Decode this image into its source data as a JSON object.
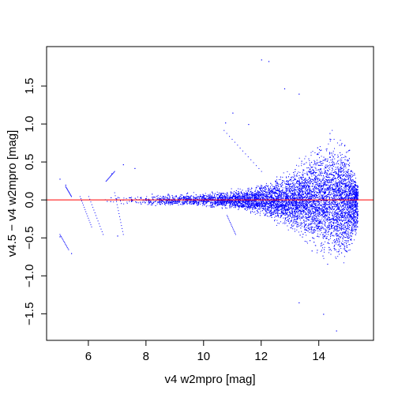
{
  "chart_data": {
    "type": "scatter",
    "title": "",
    "xlabel": "v4 w2mpro [mag]",
    "ylabel": "v4.5 − v4 w2mpro [mag]",
    "xlim": [
      4.55,
      15.9
    ],
    "ylim": [
      -1.85,
      2.02
    ],
    "xticks": [
      6,
      8,
      10,
      12,
      14
    ],
    "xtick_labels": [
      "6",
      "8",
      "10",
      "12",
      "14"
    ],
    "yticks": [
      -1.5,
      -1.0,
      -0.5,
      0.0,
      0.5,
      1.0,
      1.5
    ],
    "ytick_labels": [
      "−1.5",
      "−1.0",
      "−0.5",
      "0.0",
      "0.5",
      "1.0",
      "1.5"
    ],
    "grid": false,
    "point_color": "#0000ff",
    "reference_line": {
      "y": 0.0,
      "color": "#ff0000"
    },
    "density_envelope": {
      "description_x": [
        5.0,
        6.5,
        8.0,
        10.0,
        11.0,
        12.0,
        13.0,
        13.5,
        14.0,
        14.5,
        15.0,
        15.3
      ],
      "upper": [
        0.06,
        0.07,
        0.09,
        0.12,
        0.16,
        0.25,
        0.45,
        0.65,
        0.9,
        1.05,
        0.85,
        0.3
      ],
      "lower": [
        -0.05,
        -0.06,
        -0.08,
        -0.11,
        -0.15,
        -0.25,
        -0.45,
        -0.62,
        -0.82,
        -0.95,
        -0.95,
        -0.6
      ]
    },
    "outliers": [
      {
        "x": 12.0,
        "y": 1.85
      },
      {
        "x": 12.25,
        "y": 1.83
      },
      {
        "x": 11.0,
        "y": 1.15
      },
      {
        "x": 11.55,
        "y": 1.0
      },
      {
        "x": 12.8,
        "y": 1.47
      },
      {
        "x": 13.3,
        "y": 1.4
      },
      {
        "x": 10.75,
        "y": 1.02
      },
      {
        "x": 14.6,
        "y": -1.72
      },
      {
        "x": 14.15,
        "y": -1.5
      },
      {
        "x": 13.3,
        "y": -1.35
      },
      {
        "x": 5.4,
        "y": -0.7
      },
      {
        "x": 5.0,
        "y": -0.48
      },
      {
        "x": 5.0,
        "y": 0.28
      },
      {
        "x": 5.2,
        "y": 0.2
      },
      {
        "x": 7.6,
        "y": 0.42
      },
      {
        "x": 7.2,
        "y": 0.47
      },
      {
        "x": 6.8,
        "y": 0.35
      },
      {
        "x": 7.0,
        "y": -0.47
      }
    ],
    "streaks": [
      {
        "x0": 5.7,
        "y0": 0.05,
        "x1": 6.1,
        "y1": -0.35
      },
      {
        "x0": 6.0,
        "y0": 0.05,
        "x1": 6.5,
        "y1": -0.45
      },
      {
        "x0": 6.9,
        "y0": 0.1,
        "x1": 7.2,
        "y1": -0.45
      },
      {
        "x0": 6.6,
        "y0": 0.25,
        "x1": 6.9,
        "y1": 0.38
      },
      {
        "x0": 5.2,
        "y0": 0.18,
        "x1": 5.4,
        "y1": 0.05
      },
      {
        "x0": 5.0,
        "y0": -0.45,
        "x1": 5.3,
        "y1": -0.65
      },
      {
        "x0": 10.7,
        "y0": 0.92,
        "x1": 12.0,
        "y1": 0.38
      },
      {
        "x0": 10.8,
        "y0": -0.2,
        "x1": 11.1,
        "y1": -0.45
      }
    ]
  }
}
